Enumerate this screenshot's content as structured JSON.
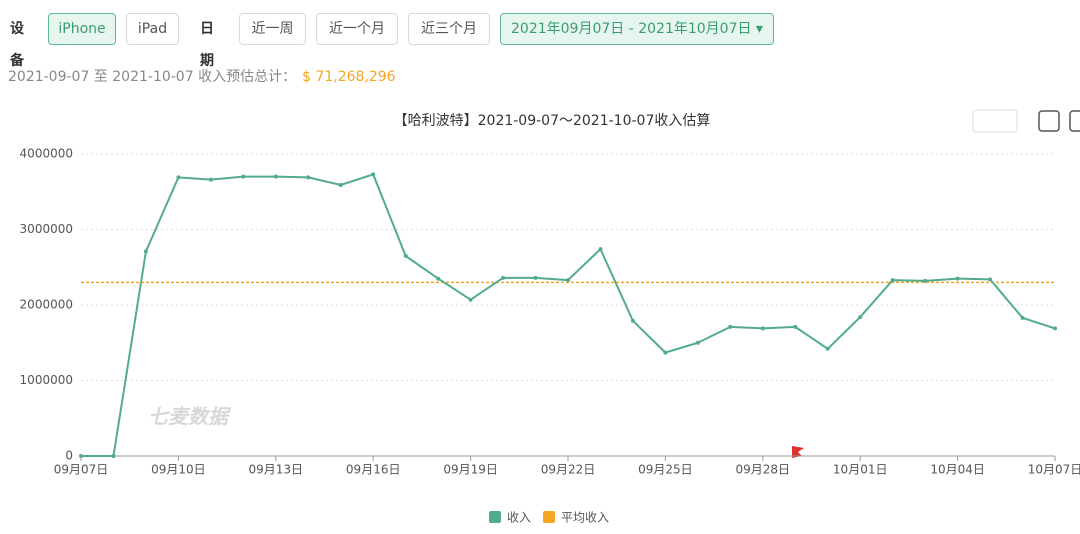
{
  "controls": {
    "device_label": "设备",
    "devices": [
      "iPhone",
      "iPad"
    ],
    "selected_device": "iPhone",
    "date_label": "日期",
    "ranges": [
      "近一周",
      "近一个月",
      "近三个月"
    ],
    "date_range": "2021年09月07日 - 2021年10月07日"
  },
  "summary": {
    "text": "2021-09-07 至 2021-10-07 收入预估总计：",
    "total": "$ 71,268,296"
  },
  "chart_data": {
    "type": "line",
    "title": "【哈利波特】2021-09-07～2021-10-07收入估算",
    "watermark": "七麦数据",
    "categories": [
      "09月07日",
      null,
      null,
      "09月10日",
      null,
      null,
      "09月13日",
      null,
      null,
      "09月16日",
      null,
      null,
      "09月19日",
      null,
      null,
      "09月22日",
      null,
      null,
      "09月25日",
      null,
      null,
      "09月28日",
      null,
      null,
      "10月01日",
      null,
      null,
      "10月04日",
      null,
      null,
      "10月07日"
    ],
    "series": [
      {
        "name": "收入",
        "color": "#52ab8a",
        "values": [
          0,
          0,
          2710000,
          3690000,
          3660000,
          3700000,
          3700000,
          3690000,
          3590000,
          3730000,
          2650000,
          2350000,
          2070000,
          2360000,
          2360000,
          2330000,
          2740000,
          1790000,
          1370000,
          1500000,
          1710000,
          1690000,
          1710000,
          1420000,
          1840000,
          2330000,
          2320000,
          2350000,
          2340000,
          1830000,
          1690000
        ]
      }
    ],
    "average": {
      "name": "平均收入",
      "color": "#f5a623",
      "value": 2300000
    },
    "ylim": [
      0,
      4000000
    ],
    "yticks": [
      0,
      1000000,
      2000000,
      3000000,
      4000000
    ],
    "grid": true
  }
}
